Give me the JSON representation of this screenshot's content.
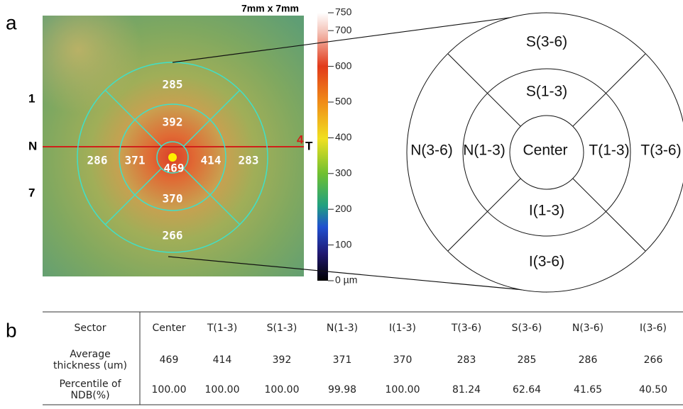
{
  "panel_a": {
    "label": "a",
    "size_label": "7mm x 7mm",
    "side_labels": {
      "top_left": "1",
      "left": "N",
      "bottom_left": "7",
      "right_number": "4",
      "right": "T"
    },
    "map_values": {
      "s_outer": "285",
      "s_inner": "392",
      "n_outer": "286",
      "n_inner": "371",
      "center": "469",
      "t_inner": "414",
      "t_outer": "283",
      "i_inner": "370",
      "i_outer": "266"
    },
    "colorbar": {
      "lim": [
        0,
        750
      ],
      "ticks": [
        750,
        700,
        600,
        500,
        400,
        300,
        200,
        100,
        {
          "value": 0,
          "label": "0 µm"
        }
      ]
    },
    "diagram": {
      "s_outer": "S(3-6)",
      "s_inner": "S(1-3)",
      "n_outer": "N(3-6)",
      "n_inner": "N(1-3)",
      "center": "Center",
      "t_inner": "T(1-3)",
      "t_outer": "T(3-6)",
      "i_inner": "I(1-3)",
      "i_outer": "I(3-6)"
    }
  },
  "panel_b": {
    "label": "b",
    "table": {
      "rows": [
        [
          "Sector",
          "Center",
          "T(1-3)",
          "S(1-3)",
          "N(1-3)",
          "I(1-3)",
          "T(3-6)",
          "S(3-6)",
          "N(3-6)",
          "I(3-6)"
        ],
        [
          "Average thickness (um)",
          "469",
          "414",
          "392",
          "371",
          "370",
          "283",
          "285",
          "286",
          "266"
        ],
        [
          "Percentile of NDB(%)",
          "100.00",
          "100.00",
          "100.00",
          "99.98",
          "100.00",
          "81.24",
          "62.64",
          "41.65",
          "40.50"
        ]
      ]
    }
  }
}
